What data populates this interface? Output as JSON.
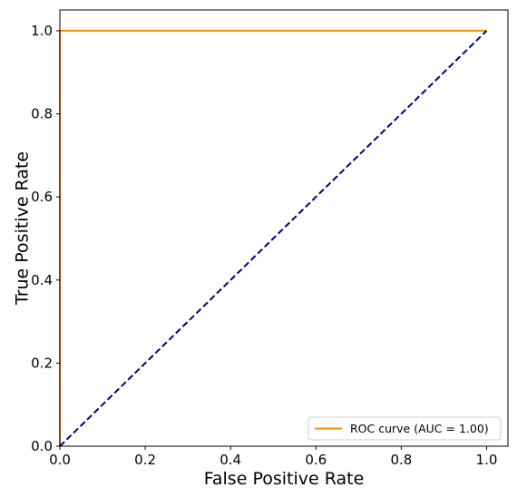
{
  "chart_data": {
    "type": "line",
    "title": "",
    "xlabel": "False Positive Rate",
    "ylabel": "True Positive Rate",
    "xlim": [
      0.0,
      1.05
    ],
    "ylim": [
      0.0,
      1.05
    ],
    "xticks": [
      "0.0",
      "0.2",
      "0.4",
      "0.6",
      "0.8",
      "1.0"
    ],
    "yticks": [
      "0.0",
      "0.2",
      "0.4",
      "0.6",
      "0.8",
      "1.0"
    ],
    "grid": false,
    "legend_position": "lower-right",
    "series": [
      {
        "name": "ROC curve (AUC = 1.00)",
        "color": "#ff8c00",
        "style": "solid",
        "x": [
          0.0,
          0.0,
          1.0
        ],
        "y": [
          0.0,
          1.0,
          1.0
        ]
      },
      {
        "color": "#000080",
        "style": "dashed",
        "x": [
          0.0,
          1.0
        ],
        "y": [
          0.0,
          1.0
        ]
      }
    ]
  }
}
